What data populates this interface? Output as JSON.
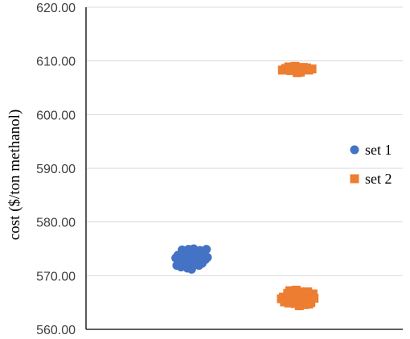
{
  "chart_data": {
    "type": "scatter",
    "title": "",
    "xlabel": "",
    "ylabel": "cost ($/ton methanol)",
    "ylim": [
      560,
      620
    ],
    "yticks": [
      "560.00",
      "570.00",
      "580.00",
      "590.00",
      "600.00",
      "610.00",
      "620.00"
    ],
    "ytick_values": [
      560,
      570,
      580,
      590,
      600,
      610,
      620
    ],
    "xlim": [
      0,
      3
    ],
    "grid": "horizontal",
    "legend_position": "right",
    "series": [
      {
        "name": "set 1",
        "marker": "circle",
        "color": "#4472C4",
        "points": [
          [
            1.0,
            573.2
          ],
          [
            0.96,
            572.6
          ],
          [
            1.04,
            573.9
          ],
          [
            0.92,
            573.5
          ],
          [
            1.08,
            572.8
          ],
          [
            0.95,
            574.1
          ],
          [
            1.03,
            572.2
          ],
          [
            0.89,
            572.9
          ],
          [
            1.11,
            573.6
          ],
          [
            1.0,
            574.4
          ],
          [
            0.93,
            572.0
          ],
          [
            1.06,
            574.0
          ],
          [
            0.98,
            571.8
          ],
          [
            1.13,
            573.0
          ],
          [
            0.87,
            573.8
          ],
          [
            1.02,
            575.0
          ],
          [
            0.9,
            571.6
          ],
          [
            1.1,
            572.3
          ],
          [
            0.97,
            573.4
          ],
          [
            1.05,
            573.1
          ],
          [
            0.94,
            574.6
          ],
          [
            1.07,
            571.9
          ],
          [
            0.99,
            572.5
          ],
          [
            1.12,
            574.3
          ],
          [
            0.88,
            572.4
          ],
          [
            1.01,
            573.7
          ],
          [
            0.91,
            574.8
          ],
          [
            1.09,
            573.3
          ],
          [
            0.96,
            571.4
          ],
          [
            1.04,
            572.7
          ],
          [
            1.14,
            574.9
          ],
          [
            0.86,
            571.9
          ],
          [
            1.0,
            571.2
          ],
          [
            1.08,
            574.7
          ],
          [
            0.93,
            573.0
          ],
          [
            1.15,
            573.4
          ],
          [
            0.85,
            573.3
          ],
          [
            1.03,
            572.0
          ],
          [
            0.97,
            574.9
          ],
          [
            1.06,
            573.5
          ]
        ]
      },
      {
        "name": "set 2",
        "marker": "square",
        "color": "#ED7D31",
        "points": [
          [
            2.0,
            608.5
          ],
          [
            1.94,
            608.2
          ],
          [
            2.06,
            608.8
          ],
          [
            1.89,
            608.6
          ],
          [
            2.11,
            608.3
          ],
          [
            1.98,
            609.0
          ],
          [
            2.03,
            607.9
          ],
          [
            1.92,
            608.9
          ],
          [
            2.09,
            608.7
          ],
          [
            2.14,
            608.5
          ],
          [
            1.86,
            608.3
          ],
          [
            2.0,
            607.8
          ],
          [
            2.0,
            565.8
          ],
          [
            1.95,
            566.4
          ],
          [
            2.05,
            565.2
          ],
          [
            1.9,
            565.6
          ],
          [
            2.1,
            566.2
          ],
          [
            1.98,
            564.8
          ],
          [
            2.03,
            567.0
          ],
          [
            1.87,
            566.0
          ],
          [
            2.12,
            565.5
          ],
          [
            1.96,
            566.8
          ],
          [
            2.07,
            564.6
          ],
          [
            1.92,
            564.9
          ],
          [
            2.15,
            566.6
          ],
          [
            2.01,
            566.1
          ],
          [
            1.88,
            565.1
          ],
          [
            2.08,
            565.9
          ],
          [
            1.94,
            565.3
          ],
          [
            2.13,
            565.0
          ],
          [
            1.99,
            567.3
          ],
          [
            2.05,
            566.5
          ],
          [
            1.85,
            565.7
          ],
          [
            2.02,
            564.4
          ],
          [
            1.97,
            565.5
          ],
          [
            2.1,
            567.0
          ],
          [
            1.91,
            566.7
          ],
          [
            2.16,
            565.8
          ],
          [
            2.04,
            565.6
          ],
          [
            1.93,
            567.2
          ],
          [
            2.11,
            564.7
          ]
        ]
      }
    ]
  }
}
